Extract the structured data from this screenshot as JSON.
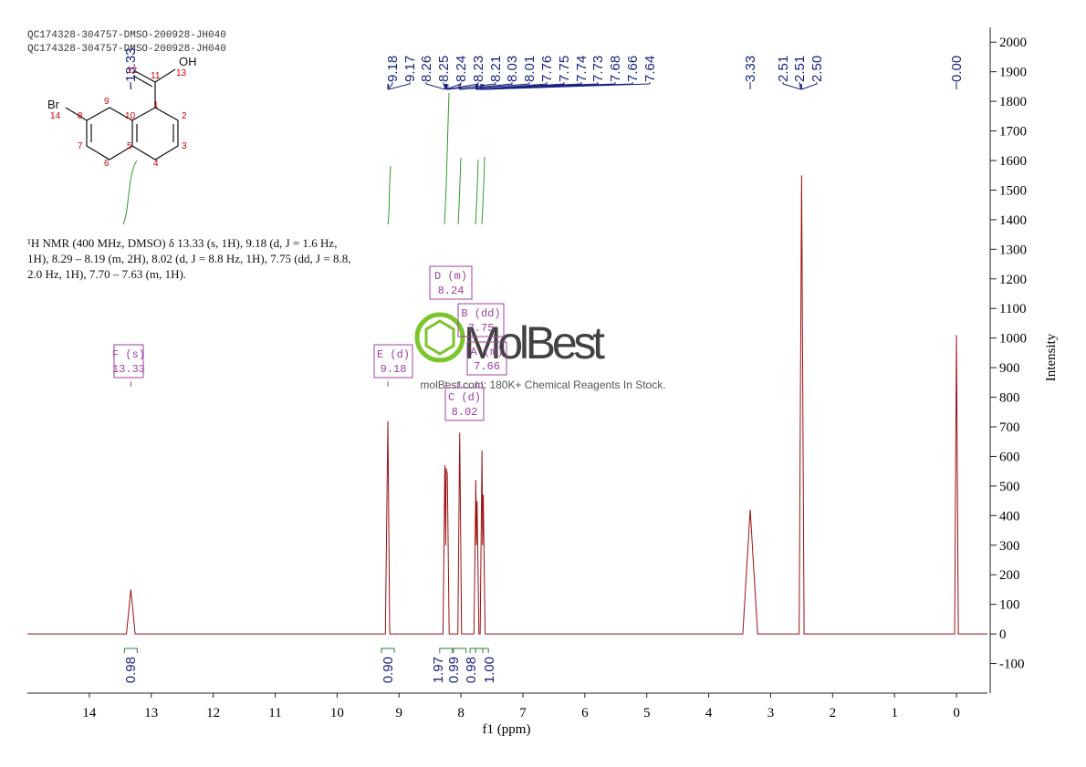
{
  "header": [
    "QC174328-304757-DMSO-200928-JH040",
    "QC174328-304757-DMSO-200928-JH040"
  ],
  "description": "¹H NMR (400 MHz, DMSO) δ 13.33 (s, 1H), 9.18 (d, J = 1.6 Hz, 1H), 8.29 – 8.19 (m, 2H), 8.02 (d, J = 8.8 Hz, 1H), 7.75 (dd, J = 8.8, 2.0 Hz, 1H), 7.70 – 7.63 (m, 1H).",
  "watermark": {
    "brand": "MolBest",
    "tagline": "molBest.com: 180K+ Chemical Reagents In Stock."
  },
  "structure": {
    "labels": [
      "Br",
      "14",
      "OH",
      "13",
      "11",
      "12",
      "1",
      "2",
      "3",
      "4",
      "5",
      "6",
      "7",
      "8",
      "9",
      "10"
    ]
  },
  "chart_data": {
    "type": "line",
    "xlabel": "f1 (ppm)",
    "ylabel": "Intensity",
    "color": "#9b1010",
    "x": [
      15,
      13.4,
      13.33,
      13.26,
      9.22,
      9.18,
      9.15,
      8.29,
      8.26,
      8.245,
      8.24,
      8.22,
      8.19,
      8.05,
      8.02,
      7.99,
      7.79,
      7.76,
      7.75,
      7.74,
      7.71,
      7.69,
      7.66,
      7.65,
      7.64,
      7.61,
      3.45,
      3.33,
      3.21,
      2.54,
      2.5,
      2.46,
      0.03,
      0,
      -0.03,
      -0.5
    ],
    "values": [
      0,
      0,
      150,
      0,
      0,
      720,
      0,
      0,
      570,
      300,
      560,
      540,
      0,
      0,
      680,
      0,
      0,
      520,
      300,
      450,
      0,
      0,
      620,
      300,
      470,
      0,
      0,
      420,
      0,
      0,
      1550,
      0,
      0,
      1010,
      0,
      0
    ],
    "xlim": [
      15,
      -0.5
    ],
    "ylim": [
      -200,
      2050
    ],
    "xticks": [
      14,
      13,
      12,
      11,
      10,
      9,
      8,
      7,
      6,
      5,
      4,
      3,
      2,
      1,
      0
    ],
    "yticks": [
      -100,
      0,
      100,
      200,
      300,
      400,
      500,
      600,
      700,
      800,
      900,
      1000,
      1100,
      1200,
      1300,
      1400,
      1500,
      1600,
      1700,
      1800,
      1900,
      2000
    ],
    "peak_labels": [
      13.33,
      9.18,
      9.17,
      8.26,
      8.25,
      8.24,
      8.23,
      8.21,
      8.03,
      8.01,
      7.76,
      7.75,
      7.74,
      7.73,
      7.68,
      7.66,
      7.64,
      3.33,
      2.51,
      2.51,
      {
        "value": 2.5,
        "label": "2.50"
      },
      {
        "value": 0,
        "label": "0.00"
      }
    ],
    "integrals": {
      "x": [
        13.33,
        9.18,
        8.24,
        8.02,
        7.75,
        7.66
      ],
      "values": [
        0.98,
        0.9,
        1.97,
        0.99,
        0.98,
        1
      ],
      "value_labels": [
        "0.98",
        "0.90",
        "1.97",
        "0.99",
        "0.98",
        "1.00"
      ],
      "color": "#2e7d32"
    },
    "multiplets": [
      {
        "label": "F (s)",
        "shift": 13.33
      },
      {
        "label": "E (d)",
        "shift": 9.18
      },
      {
        "label": "D (m)",
        "shift": 8.24
      },
      {
        "label": "B (dd)",
        "shift": 7.75
      },
      {
        "label": "A (m)",
        "shift": 7.66
      },
      {
        "label": "C (d)",
        "shift": 8.02
      }
    ]
  }
}
